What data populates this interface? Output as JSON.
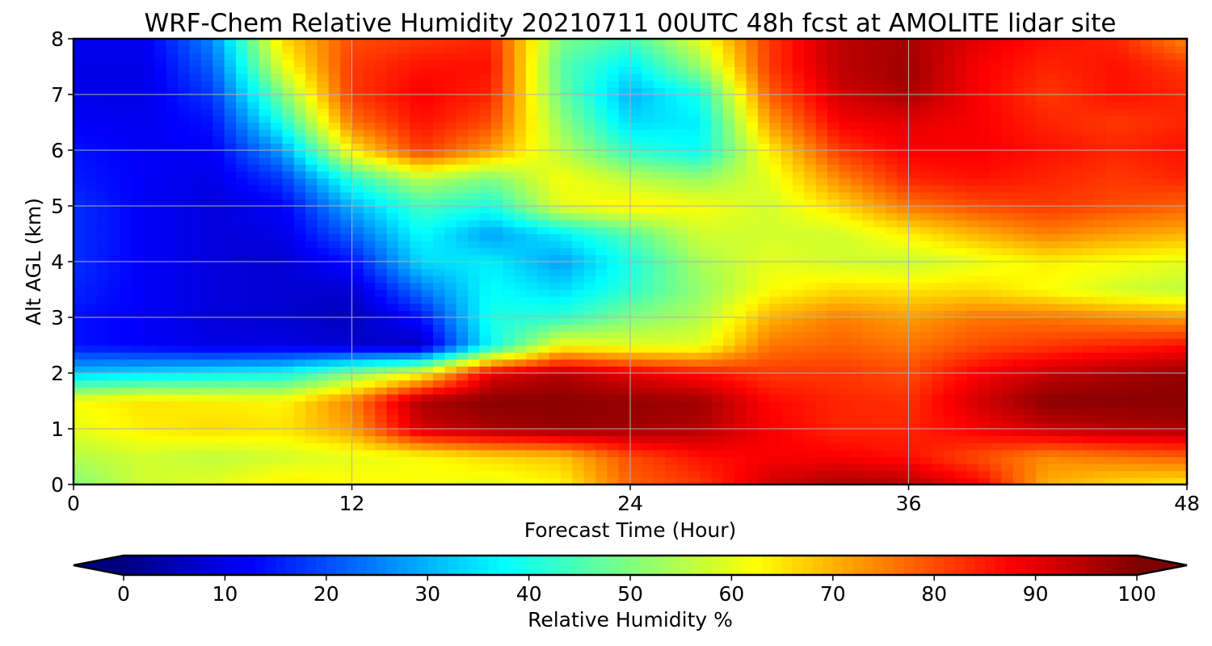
{
  "chart_data": {
    "type": "heatmap",
    "title": "WRF-Chem Relative Humidity 20210711 00UTC 48h fcst at AMOLITE lidar site",
    "xlabel": "Forecast Time (Hour)",
    "ylabel": "Alt AGL (km)",
    "xlim": [
      0,
      48
    ],
    "ylim": [
      0,
      8
    ],
    "xticks": [
      "0",
      "12",
      "24",
      "36",
      "48"
    ],
    "yticks": [
      "0",
      "1",
      "2",
      "3",
      "4",
      "5",
      "6",
      "7",
      "8"
    ],
    "grid": true,
    "colormap": "jet",
    "colorbar": {
      "label": "Relative Humidity %",
      "range": [
        0,
        100
      ],
      "ticks": [
        "0",
        "10",
        "20",
        "30",
        "40",
        "50",
        "60",
        "70",
        "80",
        "90",
        "100"
      ],
      "extend": "both",
      "under_color": "#00007f",
      "over_color": "#7f0000"
    },
    "x": [
      0,
      3,
      6,
      9,
      12,
      15,
      18,
      21,
      24,
      27,
      30,
      33,
      36,
      39,
      42,
      45,
      48
    ],
    "y": [
      0,
      0.5,
      1,
      1.5,
      2,
      2.5,
      3,
      3.5,
      4,
      4.5,
      5,
      5.5,
      6,
      6.5,
      7,
      7.5,
      8
    ],
    "z": [
      [
        50,
        58,
        60,
        64,
        63,
        62,
        60,
        63,
        78,
        82,
        92,
        96,
        95,
        88,
        70,
        66,
        64
      ],
      [
        55,
        58,
        56,
        58,
        60,
        62,
        66,
        68,
        80,
        86,
        88,
        88,
        86,
        80,
        74,
        76,
        78
      ],
      [
        60,
        64,
        66,
        65,
        72,
        92,
        96,
        98,
        97,
        95,
        88,
        84,
        84,
        88,
        93,
        95,
        96
      ],
      [
        62,
        65,
        64,
        63,
        75,
        96,
        99,
        99,
        98,
        97,
        87,
        84,
        83,
        92,
        99,
        99,
        99
      ],
      [
        32,
        34,
        36,
        38,
        50,
        62,
        90,
        95,
        90,
        86,
        82,
        82,
        80,
        88,
        93,
        96,
        98
      ],
      [
        14,
        12,
        10,
        10,
        8,
        6,
        38,
        62,
        60,
        60,
        76,
        78,
        76,
        80,
        82,
        84,
        86
      ],
      [
        14,
        12,
        9,
        8,
        6,
        14,
        40,
        42,
        50,
        55,
        70,
        75,
        72,
        76,
        76,
        74,
        72
      ],
      [
        16,
        12,
        9,
        8,
        8,
        24,
        38,
        34,
        42,
        52,
        62,
        66,
        65,
        66,
        62,
        58,
        56
      ],
      [
        17,
        12,
        9,
        8,
        14,
        34,
        36,
        28,
        40,
        54,
        60,
        58,
        57,
        60,
        64,
        62,
        60
      ],
      [
        17,
        12,
        9,
        10,
        22,
        38,
        28,
        36,
        46,
        58,
        58,
        58,
        64,
        70,
        75,
        72,
        70
      ],
      [
        17,
        12,
        9,
        12,
        30,
        44,
        40,
        60,
        64,
        62,
        58,
        66,
        76,
        80,
        82,
        80,
        78
      ],
      [
        15,
        12,
        10,
        18,
        42,
        56,
        50,
        62,
        56,
        52,
        60,
        74,
        84,
        86,
        84,
        82,
        84
      ],
      [
        14,
        12,
        12,
        28,
        64,
        82,
        72,
        56,
        42,
        38,
        64,
        82,
        88,
        88,
        86,
        84,
        86
      ],
      [
        12,
        11,
        14,
        40,
        76,
        86,
        80,
        52,
        34,
        36,
        72,
        88,
        90,
        88,
        84,
        82,
        84
      ],
      [
        10,
        10,
        18,
        50,
        82,
        88,
        84,
        48,
        30,
        40,
        78,
        92,
        96,
        88,
        82,
        86,
        84
      ],
      [
        10,
        10,
        22,
        60,
        82,
        86,
        86,
        46,
        36,
        52,
        82,
        94,
        97,
        88,
        84,
        86,
        82
      ],
      [
        11,
        11,
        26,
        66,
        80,
        82,
        84,
        50,
        44,
        60,
        82,
        94,
        96,
        90,
        86,
        84,
        74
      ]
    ]
  }
}
